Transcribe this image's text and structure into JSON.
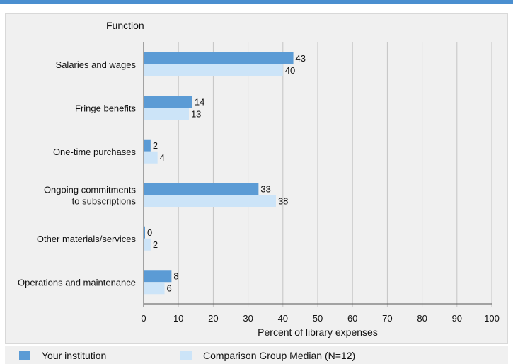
{
  "chart_data": {
    "type": "bar",
    "orientation": "horizontal",
    "category_axis_title": "Function",
    "xlabel": "Percent of library expenses",
    "xlim": [
      0,
      100
    ],
    "xticks": [
      0,
      10,
      20,
      30,
      40,
      50,
      60,
      70,
      80,
      90,
      100
    ],
    "grid": true,
    "legend_position": "bottom",
    "categories": [
      [
        "Salaries and wages"
      ],
      [
        "Fringe benefits"
      ],
      [
        "One-time purchases"
      ],
      [
        "Ongoing commitments",
        "to subscriptions"
      ],
      [
        "Other materials/services"
      ],
      [
        "Operations and maintenance"
      ]
    ],
    "series": [
      {
        "name": "Your institution",
        "color": "#5b9bd5",
        "values": [
          43,
          14,
          2,
          33,
          0,
          8
        ]
      },
      {
        "name": "Comparison Group Median (N=12)",
        "color": "#cce4f8",
        "values": [
          40,
          13,
          4,
          38,
          2,
          6
        ]
      }
    ]
  }
}
